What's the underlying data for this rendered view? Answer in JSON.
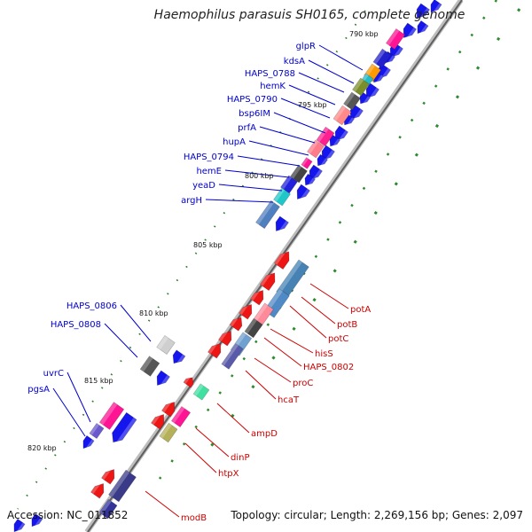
{
  "title": "Haemophilus parasuis SH0165, complete genome",
  "footer": {
    "accession": "Accession: NC_011852",
    "topology": "Topology: circular; Length: 2,269,156 bp; Genes: 2,097"
  },
  "scale_labels": [
    "790 kbp",
    "795 kbp",
    "800 kbp",
    "805 kbp",
    "810 kbp",
    "815 kbp",
    "820 kbp"
  ],
  "forward_genes": [
    "glpR",
    "kdsA",
    "HAPS_0788",
    "hemK",
    "HAPS_0790",
    "bsp6IM",
    "prfA",
    "hupA",
    "HAPS_0794",
    "hemE",
    "yeaD",
    "argH",
    "HAPS_0806",
    "HAPS_0808",
    "uvrC",
    "pgsA"
  ],
  "reverse_genes": [
    "potA",
    "potB",
    "potC",
    "hisS",
    "HAPS_0802",
    "proC",
    "hcaT",
    "ampD",
    "dinP",
    "htpX",
    "modB"
  ],
  "colors": {
    "forward_label": "#0000cc",
    "reverse_label": "#cc0000",
    "forward_arrow": "#0000ee",
    "reverse_arrow": "#ee0000",
    "backbone": "#888888",
    "gc_dots": "#228b22"
  }
}
